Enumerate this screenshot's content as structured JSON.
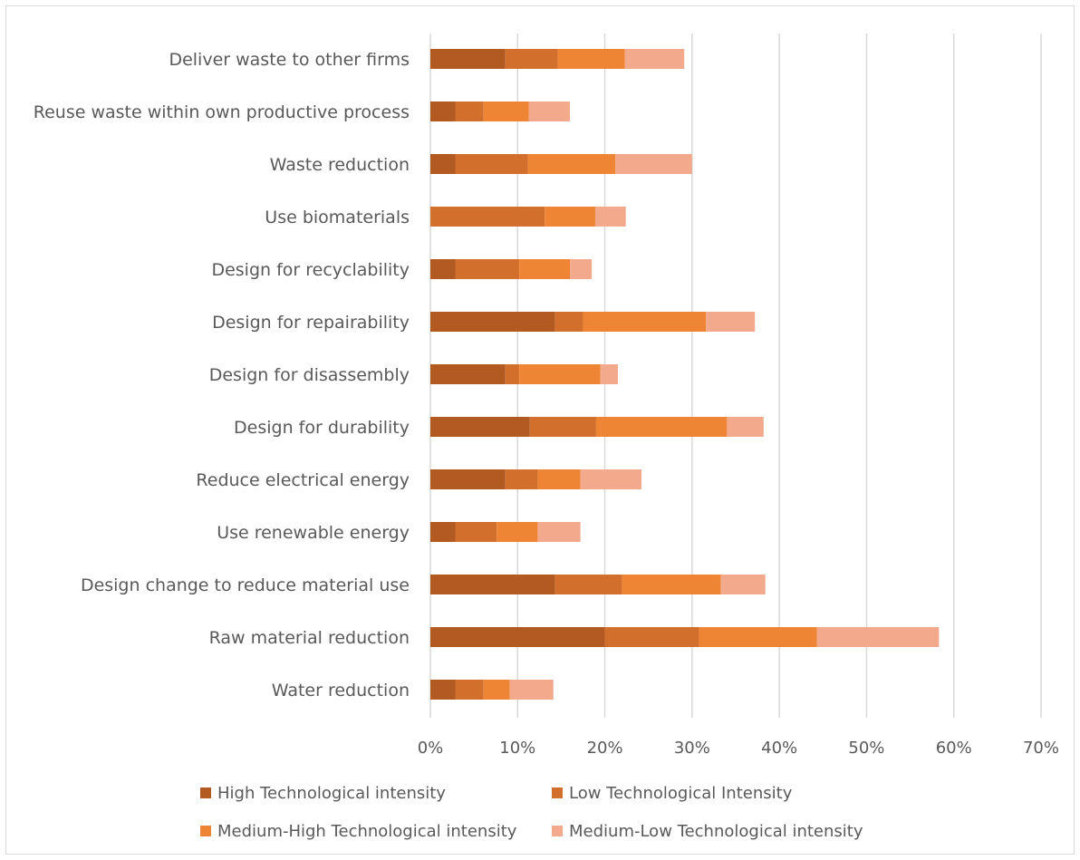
{
  "chart_data": {
    "type": "bar",
    "orientation": "horizontal",
    "stacked": true,
    "categories": [
      "Deliver waste to other firms",
      "Reuse waste within own productive process",
      "Waste reduction",
      "Use biomaterials",
      "Design for recyclability",
      "Design for repairability",
      "Design for disassembly",
      "Design for durability",
      "Reduce electrical energy",
      "Use renewable energy",
      "Design change to reduce material use",
      "Raw material reduction",
      "Water reduction"
    ],
    "series": [
      {
        "name": "High Technological intensity",
        "color": "#b35a22",
        "values": [
          8.6,
          2.9,
          2.9,
          0,
          2.9,
          14.3,
          8.6,
          11.4,
          8.6,
          2.9,
          14.3,
          20.0,
          2.9
        ]
      },
      {
        "name": "Low Technological Intensity",
        "color": "#d36f2d",
        "values": [
          6.0,
          3.2,
          8.3,
          13.1,
          7.3,
          3.2,
          1.6,
          7.6,
          3.7,
          4.7,
          7.7,
          10.8,
          3.2
        ]
      },
      {
        "name": "Medium-High Technological intensity",
        "color": "#ee8535",
        "values": [
          7.7,
          5.2,
          10.0,
          5.8,
          5.8,
          14.1,
          9.3,
          15.0,
          4.9,
          4.7,
          11.3,
          13.5,
          3.0
        ]
      },
      {
        "name": "Medium-Low Technological intensity",
        "color": "#f2a98c",
        "values": [
          6.8,
          4.7,
          8.8,
          3.5,
          2.5,
          5.6,
          2.0,
          4.2,
          7.0,
          4.9,
          5.1,
          14.0,
          5.0
        ]
      }
    ],
    "xlim": [
      0,
      70
    ],
    "xticks": [
      "0%",
      "10%",
      "20%",
      "30%",
      "40%",
      "50%",
      "60%",
      "70%"
    ],
    "grid": "vertical",
    "legend": "bottom"
  }
}
